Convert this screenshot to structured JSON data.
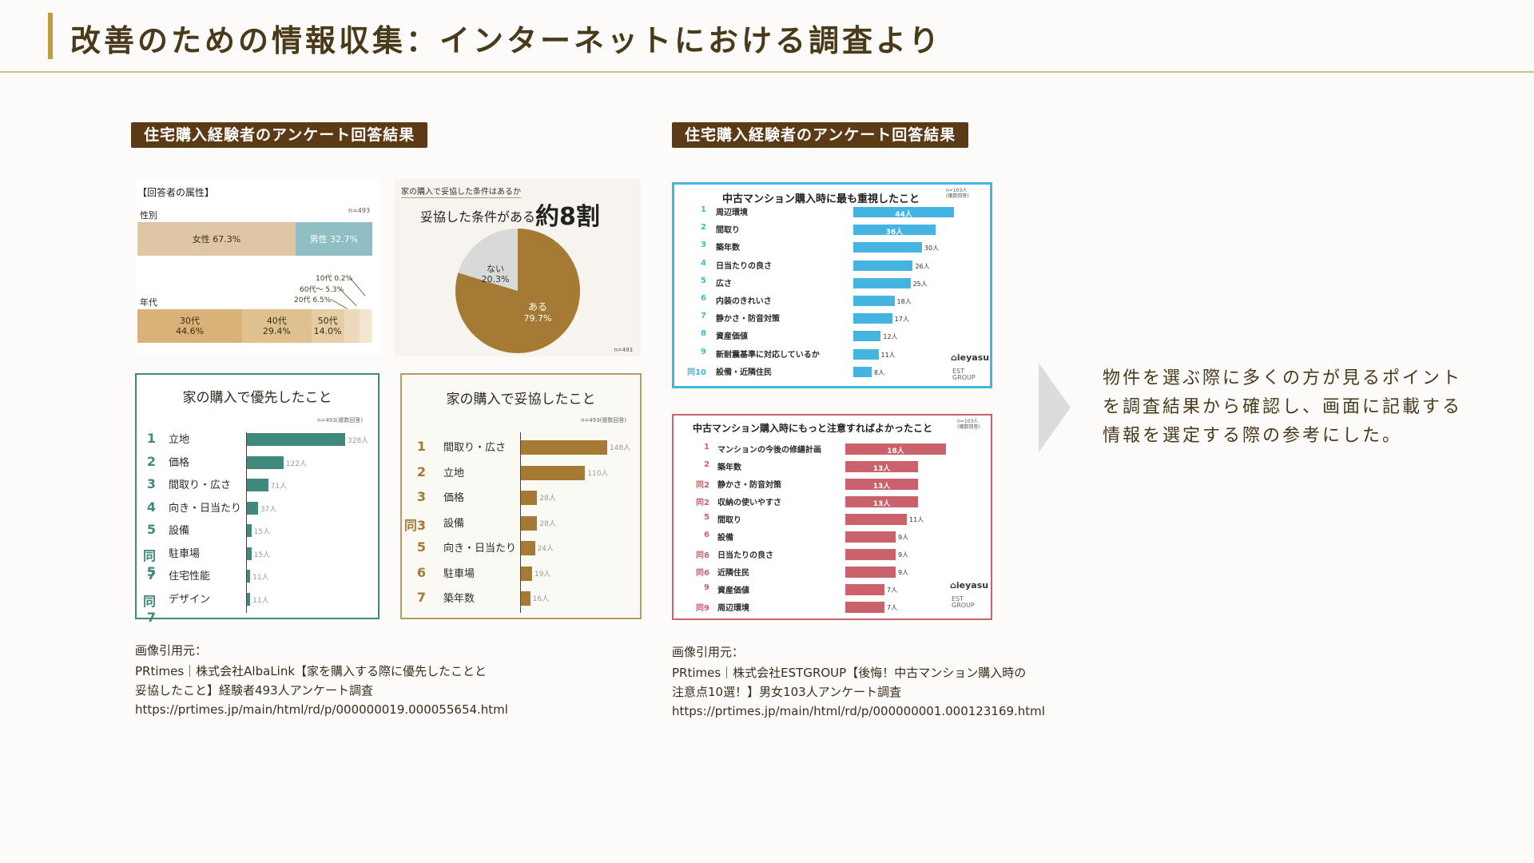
{
  "header": {
    "title": "改善のための情報収集：インターネットにおける調査より"
  },
  "left": {
    "tag": "住宅購入経験者のアンケート回答結果",
    "attributes": {
      "heading": "【回答者の属性】",
      "gender_label": "性別",
      "n": "n=493",
      "female": "女性 67.3%",
      "male": "男性 32.7%",
      "gender_values": [
        67.3,
        32.7
      ],
      "age_label": "年代",
      "age_30s": "30代\n44.6%",
      "age_40s": "40代\n29.4%",
      "age_50s": "50代\n14.0%",
      "age_values": [
        44.6,
        29.4,
        14.0,
        6.5,
        5.3,
        0.2
      ],
      "callout_10s": "10代 0.2%",
      "callout_60s": "60代～ 5.3%",
      "callout_20s": "20代 6.5%",
      "colors": {
        "female": "#dfc7a5",
        "male": "#8fbfc4",
        "age": [
          "#d8b278",
          "#dfc08f",
          "#e6cda5",
          "#ecd9bc",
          "#f2e5d2",
          "#f7efe3"
        ]
      }
    },
    "pie": {
      "question": "家の購入で妥協した条件はあるか",
      "headline_prefix": "妥協した条件がある",
      "headline_big": "約8割",
      "yes_label": "ある",
      "yes_pct": "79.7%",
      "no_label": "ない",
      "no_pct": "20.3%",
      "values": [
        79.7,
        20.3
      ],
      "n": "n=493",
      "colors": {
        "yes": "#a47a35",
        "no": "#d9d9d9"
      }
    },
    "priority": {
      "title": "家の購入で優先したこと",
      "note": "n=493(複数回答)",
      "color": "#3f8a7c",
      "max": 328,
      "rows": [
        {
          "rank": "1",
          "label": "立地",
          "value": 328,
          "value_text": "328人"
        },
        {
          "rank": "2",
          "label": "価格",
          "value": 122,
          "value_text": "122人"
        },
        {
          "rank": "3",
          "label": "間取り・広さ",
          "value": 71,
          "value_text": "71人"
        },
        {
          "rank": "4",
          "label": "向き・日当たり",
          "value": 37,
          "value_text": "37人"
        },
        {
          "rank": "5",
          "label": "設備",
          "value": 15,
          "value_text": "15人"
        },
        {
          "rank": "同5",
          "label": "駐車場",
          "value": 15,
          "value_text": "15人"
        },
        {
          "rank": "7",
          "label": "住宅性能",
          "value": 11,
          "value_text": "11人"
        },
        {
          "rank": "同7",
          "label": "デザイン",
          "value": 11,
          "value_text": "11人"
        }
      ]
    },
    "compromise": {
      "title": "家の購入で妥協したこと",
      "note": "n=493(複数回答)",
      "color": "#a47a35",
      "max": 148,
      "rows": [
        {
          "rank": "1",
          "label": "間取り・広さ",
          "value": 148,
          "value_text": "148人"
        },
        {
          "rank": "2",
          "label": "立地",
          "value": 110,
          "value_text": "110人"
        },
        {
          "rank": "3",
          "label": "価格",
          "value": 28,
          "value_text": "28人"
        },
        {
          "rank": "同3",
          "label": "設備",
          "value": 28,
          "value_text": "28人"
        },
        {
          "rank": "5",
          "label": "向き・日当たり",
          "value": 24,
          "value_text": "24人"
        },
        {
          "rank": "6",
          "label": "駐車場",
          "value": 19,
          "value_text": "19人"
        },
        {
          "rank": "7",
          "label": "築年数",
          "value": 16,
          "value_text": "16人"
        }
      ]
    },
    "citation": {
      "label": "画像引用元：",
      "line1": "PRtimes｜株式会社AlbaLink【家を購入する際に優先したことと",
      "line2": "妥協したこと】経験者493人アンケート調査",
      "url": " https://prtimes.jp/main/html/rd/p/000000019.000055654.html"
    }
  },
  "right": {
    "tag": "住宅購入経験者のアンケート回答結果",
    "most_important": {
      "title": "中古マンション購入時に最も重視したこと",
      "note": "n=103人\n(複数回答)",
      "color": "#45b4e0",
      "max": 44,
      "logo": "ieyasu",
      "logo2": "EST\nGROUP",
      "rows": [
        {
          "rank": "1",
          "label": "周辺環境",
          "value": 44,
          "value_text": "44人"
        },
        {
          "rank": "2",
          "label": "間取り",
          "value": 36,
          "value_text": "36人"
        },
        {
          "rank": "3",
          "label": "築年数",
          "value": 30,
          "value_text": "30人"
        },
        {
          "rank": "4",
          "label": "日当たりの良さ",
          "value": 26,
          "value_text": "26人"
        },
        {
          "rank": "5",
          "label": "広さ",
          "value": 25,
          "value_text": "25人"
        },
        {
          "rank": "6",
          "label": "内装のきれいさ",
          "value": 18,
          "value_text": "18人"
        },
        {
          "rank": "7",
          "label": "静かさ・防音対策",
          "value": 17,
          "value_text": "17人"
        },
        {
          "rank": "8",
          "label": "資産価値",
          "value": 12,
          "value_text": "12人"
        },
        {
          "rank": "9",
          "label": "新耐震基準に対応しているか",
          "value": 11,
          "value_text": "11人"
        },
        {
          "rank": "同10",
          "label": "設備・近隣住民",
          "value": 8,
          "value_text": "8人"
        }
      ]
    },
    "should_care": {
      "title": "中古マンション購入時にもっと注意すればよかったこと",
      "note": "n=103人\n(複数回答)",
      "color": "#c9626a",
      "max": 18,
      "logo": "ieyasu",
      "logo2": "EST\nGROUP",
      "rows": [
        {
          "rank": "1",
          "label": "マンションの今後の修繕計画",
          "value": 18,
          "value_text": "18人"
        },
        {
          "rank": "2",
          "label": "築年数",
          "value": 13,
          "value_text": "13人"
        },
        {
          "rank": "同2",
          "label": "静かさ・防音対策",
          "value": 13,
          "value_text": "13人"
        },
        {
          "rank": "同2",
          "label": "収納の使いやすさ",
          "value": 13,
          "value_text": "13人"
        },
        {
          "rank": "5",
          "label": "間取り",
          "value": 11,
          "value_text": "11人"
        },
        {
          "rank": "6",
          "label": "設備",
          "value": 9,
          "value_text": "9人"
        },
        {
          "rank": "同6",
          "label": "日当たりの良さ",
          "value": 9,
          "value_text": "9人"
        },
        {
          "rank": "同6",
          "label": "近隣住民",
          "value": 9,
          "value_text": "9人"
        },
        {
          "rank": "9",
          "label": "資産価値",
          "value": 7,
          "value_text": "7人"
        },
        {
          "rank": "同9",
          "label": "周辺環境",
          "value": 7,
          "value_text": "7人"
        }
      ]
    },
    "citation": {
      "label": "画像引用元：",
      "line1": "PRtimes｜株式会社ESTGROUP【後悔！中古マンション購入時の",
      "line2": "注意点10選！】男女103人アンケート調査",
      "url": "https://prtimes.jp/main/html/rd/p/000000001.000123169.html"
    }
  },
  "side_note": {
    "line1": "物件を選ぶ際に多くの方が見るポイント",
    "line2": "を調査結果から確認し、画面に記載する",
    "line3": "情報を選定する際の参考にした。"
  }
}
